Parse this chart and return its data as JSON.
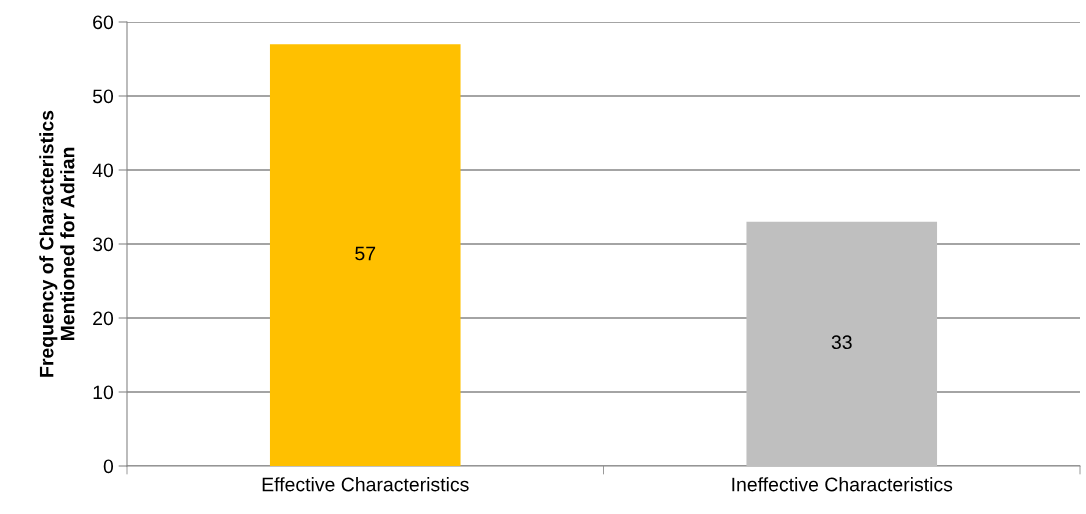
{
  "chart_data": {
    "type": "bar",
    "ylabel": "Frequency of Characteristics\nMentioned for Adrian",
    "categories": [
      "Effective Characteristics",
      "Ineffective Characteristics"
    ],
    "values": [
      57,
      33
    ],
    "colors": [
      "#ffc000",
      "#bfbfbf"
    ],
    "ylim": [
      0,
      60
    ],
    "yticks": [
      0,
      10,
      20,
      30,
      40,
      50,
      60
    ],
    "grid": "y",
    "data_labels": true
  }
}
